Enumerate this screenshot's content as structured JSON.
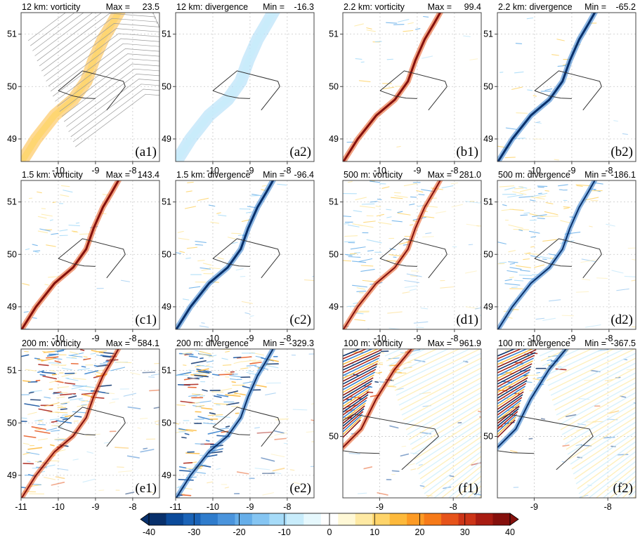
{
  "chart_data": {
    "type": "heatmap",
    "panels": [
      {
        "id": "a1",
        "label": "(a1)",
        "title": "12 km: vorticity",
        "stat_label": "Max =",
        "stat_value": "23.5",
        "field": "vorticity",
        "resolution": "12 km",
        "stat": 23.5,
        "xticks": [
          "-10",
          "-9",
          "-8"
        ],
        "yticks": [
          "49",
          "50",
          "51"
        ],
        "has_3d_lines": true
      },
      {
        "id": "a2",
        "label": "(a2)",
        "title": "12 km: divergence",
        "stat_label": "Min =",
        "stat_value": "-16.3",
        "field": "divergence",
        "resolution": "12 km",
        "stat": -16.3,
        "xticks": [
          "-10",
          "-9",
          "-8"
        ],
        "yticks": [
          "49",
          "50",
          "51"
        ]
      },
      {
        "id": "b1",
        "label": "(b1)",
        "title": "2.2 km: vorticity",
        "stat_label": "Max =",
        "stat_value": "99.4",
        "field": "vorticity",
        "resolution": "2.2 km",
        "stat": 99.4,
        "xticks": [
          "-10",
          "-9",
          "-8"
        ],
        "yticks": [
          "49",
          "50",
          "51"
        ]
      },
      {
        "id": "b2",
        "label": "(b2)",
        "title": "2.2 km: divergence",
        "stat_label": "Min =",
        "stat_value": "-65.2",
        "field": "divergence",
        "resolution": "2.2 km",
        "stat": -65.2,
        "xticks": [
          "-10",
          "-9",
          "-8"
        ],
        "yticks": [
          "49",
          "50",
          "51"
        ]
      },
      {
        "id": "c1",
        "label": "(c1)",
        "title": "1.5 km: vorticity",
        "stat_label": "Max =",
        "stat_value": "143.4",
        "field": "vorticity",
        "resolution": "1.5 km",
        "stat": 143.4,
        "xticks": [
          "-10",
          "-9",
          "-8"
        ],
        "yticks": [
          "49",
          "50",
          "51"
        ]
      },
      {
        "id": "c2",
        "label": "(c2)",
        "title": "1.5 km: divergence",
        "stat_label": "Min =",
        "stat_value": "-96.4",
        "field": "divergence",
        "resolution": "1.5 km",
        "stat": -96.4,
        "xticks": [
          "-10",
          "-9",
          "-8"
        ],
        "yticks": [
          "49",
          "50",
          "51"
        ]
      },
      {
        "id": "d1",
        "label": "(d1)",
        "title": "500 m: vorticity",
        "stat_label": "Max =",
        "stat_value": "281.0",
        "field": "vorticity",
        "resolution": "500 m",
        "stat": 281.0,
        "xticks": [
          "-10",
          "-9",
          "-8"
        ],
        "yticks": [
          "49",
          "50",
          "51"
        ]
      },
      {
        "id": "d2",
        "label": "(d2)",
        "title": "500 m: divergence",
        "stat_label": "Min =",
        "stat_value": "-186.1",
        "field": "divergence",
        "resolution": "500 m",
        "stat": -186.1,
        "xticks": [
          "-10",
          "-9",
          "-8"
        ],
        "yticks": [
          "49",
          "50",
          "51"
        ]
      },
      {
        "id": "e1",
        "label": "(e1)",
        "title": "200 m: vorticity",
        "stat_label": "Max =",
        "stat_value": "584.1",
        "field": "vorticity",
        "resolution": "200 m",
        "stat": 584.1,
        "xticks": [
          "-11",
          "-10",
          "-9",
          "-8"
        ],
        "yticks": [
          "49",
          "50",
          "51"
        ]
      },
      {
        "id": "e2",
        "label": "(e2)",
        "title": "200 m: divergence",
        "stat_label": "Min =",
        "stat_value": "-329.3",
        "field": "divergence",
        "resolution": "200 m",
        "stat": -329.3,
        "xticks": [
          "-11",
          "-10",
          "-9",
          "-8"
        ],
        "yticks": [
          "49",
          "50",
          "51"
        ]
      },
      {
        "id": "f1",
        "label": "(f1)",
        "title": "100 m: vorticity",
        "stat_label": "Max =",
        "stat_value": "961.9",
        "field": "vorticity",
        "resolution": "100 m",
        "stat": 961.9,
        "xticks": [
          "-9",
          "-8"
        ],
        "yticks": [
          "50"
        ]
      },
      {
        "id": "f2",
        "label": "(f2)",
        "title": "100 m: divergence",
        "stat_label": "Min =",
        "stat_value": "-367.5",
        "field": "divergence",
        "resolution": "100 m",
        "stat": -367.5,
        "xticks": [
          "-9",
          "-8"
        ],
        "yticks": [
          "50"
        ]
      }
    ],
    "colorbar": {
      "ticks": [
        "-40",
        "-30",
        "-20",
        "-10",
        "0",
        "10",
        "20",
        "30",
        "40"
      ],
      "range": [
        -40,
        40
      ],
      "extend": "both",
      "colors": [
        "#08306b",
        "#0b4a9a",
        "#1a63b7",
        "#2f7ccc",
        "#4a94dc",
        "#66aee9",
        "#85c5f2",
        "#a6dbf8",
        "#c8ecfb",
        "#e6f8fd",
        "#ffffff",
        "#fff8d6",
        "#fee9a3",
        "#fed46a",
        "#fdb93b",
        "#fc9a24",
        "#f67a18",
        "#e6531a",
        "#cc3417",
        "#a81c12",
        "#85100c"
      ]
    },
    "grid": true
  }
}
